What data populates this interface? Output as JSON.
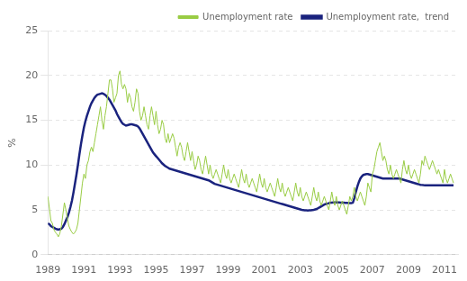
{
  "chart_data": {
    "type": "line",
    "ylabel": "%",
    "xlim": [
      1989.0,
      2011.75
    ],
    "xticks": [
      1989,
      1991,
      1993,
      1995,
      1997,
      1999,
      2001,
      2003,
      2005,
      2007,
      2009,
      2011
    ],
    "ylim": [
      0,
      25
    ],
    "yticks": [
      0,
      5,
      10,
      15,
      20,
      25
    ],
    "grid": "y",
    "legend": "upper right",
    "x": [
      1989,
      1989.083333,
      1989.166667,
      1989.25,
      1989.333333,
      1989.416667,
      1989.5,
      1989.583333,
      1989.666667,
      1989.75,
      1989.833333,
      1989.916667,
      1990,
      1990.083333,
      1990.166667,
      1990.25,
      1990.333333,
      1990.416667,
      1990.5,
      1990.583333,
      1990.666667,
      1990.75,
      1990.833333,
      1990.916667,
      1991,
      1991.083333,
      1991.166667,
      1991.25,
      1991.333333,
      1991.416667,
      1991.5,
      1991.583333,
      1991.666667,
      1991.75,
      1991.833333,
      1991.916667,
      1992,
      1992.083333,
      1992.166667,
      1992.25,
      1992.333333,
      1992.416667,
      1992.5,
      1992.583333,
      1992.666667,
      1992.75,
      1992.833333,
      1992.916667,
      1993,
      1993.083333,
      1993.166667,
      1993.25,
      1993.333333,
      1993.416667,
      1993.5,
      1993.583333,
      1993.666667,
      1993.75,
      1993.833333,
      1993.916667,
      1994,
      1994.083333,
      1994.166667,
      1994.25,
      1994.333333,
      1994.416667,
      1994.5,
      1994.583333,
      1994.666667,
      1994.75,
      1994.833333,
      1994.916667,
      1995,
      1995.083333,
      1995.166667,
      1995.25,
      1995.333333,
      1995.416667,
      1995.5,
      1995.583333,
      1995.666667,
      1995.75,
      1995.833333,
      1995.916667,
      1996,
      1996.083333,
      1996.166667,
      1996.25,
      1996.333333,
      1996.416667,
      1996.5,
      1996.583333,
      1996.666667,
      1996.75,
      1996.833333,
      1996.916667,
      1997,
      1997.083333,
      1997.166667,
      1997.25,
      1997.333333,
      1997.416667,
      1997.5,
      1997.583333,
      1997.666667,
      1997.75,
      1997.833333,
      1997.916667,
      1998,
      1998.083333,
      1998.166667,
      1998.25,
      1998.333333,
      1998.416667,
      1998.5,
      1998.583333,
      1998.666667,
      1998.75,
      1998.833333,
      1998.916667,
      1999,
      1999.083333,
      1999.166667,
      1999.25,
      1999.333333,
      1999.416667,
      1999.5,
      1999.583333,
      1999.666667,
      1999.75,
      1999.833333,
      1999.916667,
      2000,
      2000.083333,
      2000.166667,
      2000.25,
      2000.333333,
      2000.416667,
      2000.5,
      2000.583333,
      2000.666667,
      2000.75,
      2000.833333,
      2000.916667,
      2001,
      2001.083333,
      2001.166667,
      2001.25,
      2001.333333,
      2001.416667,
      2001.5,
      2001.583333,
      2001.666667,
      2001.75,
      2001.833333,
      2001.916667,
      2002,
      2002.083333,
      2002.166667,
      2002.25,
      2002.333333,
      2002.416667,
      2002.5,
      2002.583333,
      2002.666667,
      2002.75,
      2002.833333,
      2002.916667,
      2003,
      2003.083333,
      2003.166667,
      2003.25,
      2003.333333,
      2003.416667,
      2003.5,
      2003.583333,
      2003.666667,
      2003.75,
      2003.833333,
      2003.916667,
      2004,
      2004.083333,
      2004.166667,
      2004.25,
      2004.333333,
      2004.416667,
      2004.5,
      2004.583333,
      2004.666667,
      2004.75,
      2004.833333,
      2004.916667,
      2005,
      2005.083333,
      2005.166667,
      2005.25,
      2005.333333,
      2005.416667,
      2005.5,
      2005.583333,
      2005.666667,
      2005.75,
      2005.833333,
      2005.916667,
      2006,
      2006.083333,
      2006.166667,
      2006.25,
      2006.333333,
      2006.416667,
      2006.5,
      2006.583333,
      2006.666667,
      2006.75,
      2006.833333,
      2006.916667,
      2007,
      2007.083333,
      2007.166667,
      2007.25,
      2007.333333,
      2007.416667,
      2007.5,
      2007.583333,
      2007.666667,
      2007.75,
      2007.833333,
      2007.916667,
      2008,
      2008.083333,
      2008.166667,
      2008.25,
      2008.333333,
      2008.416667,
      2008.5,
      2008.583333,
      2008.666667,
      2008.75,
      2008.833333,
      2008.916667,
      2009,
      2009.083333,
      2009.166667,
      2009.25,
      2009.333333,
      2009.416667,
      2009.5,
      2009.583333,
      2009.666667,
      2009.75,
      2009.833333,
      2009.916667,
      2010,
      2010.083333,
      2010.166667,
      2010.25,
      2010.333333,
      2010.416667,
      2010.5,
      2010.583333,
      2010.666667,
      2010.75,
      2010.833333,
      2010.916667,
      2011,
      2011.083333,
      2011.166667,
      2011.25,
      2011.333333,
      2011.416667,
      2011.5
    ],
    "series": [
      {
        "name": "Unemployment rate",
        "color": "#99cc44",
        "values": [
          6.5,
          5.2,
          3.8,
          3.5,
          2.8,
          2.5,
          2.3,
          2.0,
          2.4,
          3.2,
          4.5,
          5.8,
          5.0,
          4.0,
          3.2,
          2.8,
          2.5,
          2.3,
          2.5,
          2.8,
          3.5,
          5.0,
          6.5,
          8.0,
          9.0,
          8.5,
          10.0,
          10.5,
          11.5,
          12.0,
          11.5,
          12.5,
          13.5,
          14.5,
          15.5,
          16.5,
          15.0,
          14.0,
          15.5,
          16.5,
          18.0,
          19.5,
          19.5,
          18.5,
          17.0,
          17.5,
          18.0,
          20.0,
          20.5,
          19.0,
          18.5,
          19.0,
          18.5,
          17.0,
          18.0,
          17.5,
          16.5,
          16.0,
          17.0,
          18.5,
          18.0,
          16.0,
          15.0,
          15.5,
          16.5,
          15.5,
          14.5,
          14.0,
          15.5,
          16.5,
          15.5,
          14.5,
          16.0,
          14.5,
          13.5,
          14.0,
          15.0,
          14.5,
          13.0,
          12.5,
          13.5,
          12.5,
          13.0,
          13.5,
          13.0,
          12.0,
          11.0,
          12.0,
          12.5,
          12.0,
          11.0,
          10.5,
          11.5,
          12.5,
          11.5,
          10.5,
          11.5,
          10.5,
          9.5,
          10.0,
          11.0,
          10.5,
          9.5,
          9.0,
          10.0,
          11.0,
          10.0,
          9.0,
          10.0,
          9.0,
          8.5,
          9.0,
          9.5,
          9.0,
          8.5,
          8.0,
          9.0,
          10.0,
          9.0,
          8.5,
          9.5,
          8.5,
          8.0,
          8.5,
          9.0,
          8.5,
          8.0,
          7.5,
          8.5,
          9.5,
          8.5,
          8.0,
          9.0,
          8.0,
          7.5,
          8.0,
          8.5,
          8.0,
          7.5,
          7.0,
          8.0,
          9.0,
          8.0,
          7.5,
          8.5,
          7.5,
          7.0,
          7.5,
          8.0,
          7.5,
          7.0,
          6.5,
          7.5,
          8.5,
          7.5,
          7.0,
          8.0,
          7.0,
          6.5,
          7.0,
          7.5,
          7.0,
          6.5,
          6.0,
          7.0,
          8.0,
          7.0,
          6.5,
          7.5,
          6.5,
          6.0,
          6.5,
          7.0,
          6.5,
          6.0,
          5.5,
          6.5,
          7.5,
          6.5,
          6.0,
          7.0,
          6.0,
          5.5,
          6.0,
          6.5,
          6.0,
          5.5,
          5.0,
          6.0,
          7.0,
          6.0,
          5.5,
          6.5,
          5.5,
          5.0,
          5.5,
          6.0,
          5.5,
          5.0,
          4.5,
          5.5,
          6.5,
          6.0,
          6.5,
          7.5,
          6.5,
          6.0,
          6.5,
          7.0,
          6.5,
          6.0,
          5.5,
          6.5,
          8.0,
          7.5,
          7.0,
          9.0,
          9.5,
          10.5,
          11.5,
          12.0,
          12.5,
          11.5,
          10.5,
          11.0,
          10.5,
          9.5,
          9.0,
          10.0,
          9.0,
          8.5,
          9.0,
          9.5,
          9.0,
          8.5,
          8.0,
          9.5,
          10.5,
          9.5,
          9.0,
          10.0,
          9.0,
          8.5,
          9.0,
          9.5,
          9.0,
          8.5,
          8.0,
          9.0,
          10.5,
          10.0,
          11.0,
          10.5,
          10.0,
          9.5,
          10.0,
          10.5,
          10.0,
          9.5,
          9.0,
          9.5,
          9.0,
          8.5,
          8.0,
          9.5,
          8.5,
          8.0,
          8.5,
          9.0,
          8.5,
          8.0
        ]
      },
      {
        "name": "Unemployment rate,  trend",
        "color": "#1a237e",
        "values": [
          3.5,
          3.4,
          3.2,
          3.1,
          3.0,
          2.9,
          2.85,
          2.8,
          2.85,
          2.9,
          3.1,
          3.4,
          3.8,
          4.2,
          4.7,
          5.3,
          6.0,
          6.9,
          7.9,
          8.9,
          10.0,
          11.2,
          12.3,
          13.3,
          14.2,
          14.9,
          15.5,
          16.0,
          16.5,
          16.9,
          17.2,
          17.5,
          17.7,
          17.85,
          17.9,
          17.95,
          18.0,
          17.95,
          17.85,
          17.7,
          17.5,
          17.3,
          17.0,
          16.7,
          16.4,
          16.1,
          15.7,
          15.4,
          15.1,
          14.8,
          14.6,
          14.5,
          14.4,
          14.45,
          14.5,
          14.55,
          14.55,
          14.5,
          14.45,
          14.4,
          14.3,
          14.1,
          13.8,
          13.5,
          13.2,
          12.9,
          12.6,
          12.3,
          12.0,
          11.7,
          11.4,
          11.2,
          11.0,
          10.8,
          10.6,
          10.4,
          10.2,
          10.05,
          9.9,
          9.8,
          9.7,
          9.6,
          9.55,
          9.5,
          9.45,
          9.4,
          9.35,
          9.3,
          9.25,
          9.2,
          9.15,
          9.1,
          9.05,
          9.0,
          8.95,
          8.9,
          8.85,
          8.8,
          8.75,
          8.7,
          8.65,
          8.6,
          8.55,
          8.5,
          8.45,
          8.4,
          8.35,
          8.3,
          8.2,
          8.1,
          8.0,
          7.9,
          7.85,
          7.8,
          7.75,
          7.7,
          7.65,
          7.6,
          7.55,
          7.5,
          7.45,
          7.4,
          7.35,
          7.3,
          7.25,
          7.2,
          7.15,
          7.1,
          7.05,
          7.0,
          6.95,
          6.9,
          6.85,
          6.8,
          6.75,
          6.7,
          6.65,
          6.6,
          6.55,
          6.5,
          6.45,
          6.4,
          6.35,
          6.3,
          6.25,
          6.2,
          6.15,
          6.1,
          6.05,
          6.0,
          5.95,
          5.9,
          5.85,
          5.8,
          5.75,
          5.7,
          5.65,
          5.6,
          5.55,
          5.5,
          5.45,
          5.4,
          5.35,
          5.3,
          5.25,
          5.2,
          5.15,
          5.1,
          5.05,
          5.0,
          4.98,
          4.96,
          4.95,
          4.94,
          4.95,
          4.96,
          4.98,
          5.0,
          5.05,
          5.1,
          5.2,
          5.3,
          5.4,
          5.5,
          5.6,
          5.65,
          5.7,
          5.75,
          5.8,
          5.82,
          5.83,
          5.84,
          5.85,
          5.84,
          5.83,
          5.82,
          5.81,
          5.8,
          5.79,
          5.78,
          5.77,
          5.76,
          5.75,
          5.8,
          6.3,
          7.0,
          7.6,
          8.1,
          8.5,
          8.75,
          8.9,
          8.95,
          9.0,
          9.0,
          8.95,
          8.9,
          8.85,
          8.8,
          8.75,
          8.7,
          8.65,
          8.6,
          8.55,
          8.5,
          8.5,
          8.5,
          8.5,
          8.5,
          8.5,
          8.5,
          8.5,
          8.5,
          8.5,
          8.5,
          8.5,
          8.45,
          8.4,
          8.35,
          8.3,
          8.25,
          8.2,
          8.15,
          8.1,
          8.05,
          8.0,
          7.95,
          7.9,
          7.85,
          7.8,
          7.78,
          7.76,
          7.75,
          7.75,
          7.75,
          7.75,
          7.75,
          7.75,
          7.75,
          7.75,
          7.75,
          7.75,
          7.75,
          7.75,
          7.75,
          7.75,
          7.75,
          7.75,
          7.75,
          7.75,
          7.75,
          7.75
        ]
      }
    ]
  }
}
